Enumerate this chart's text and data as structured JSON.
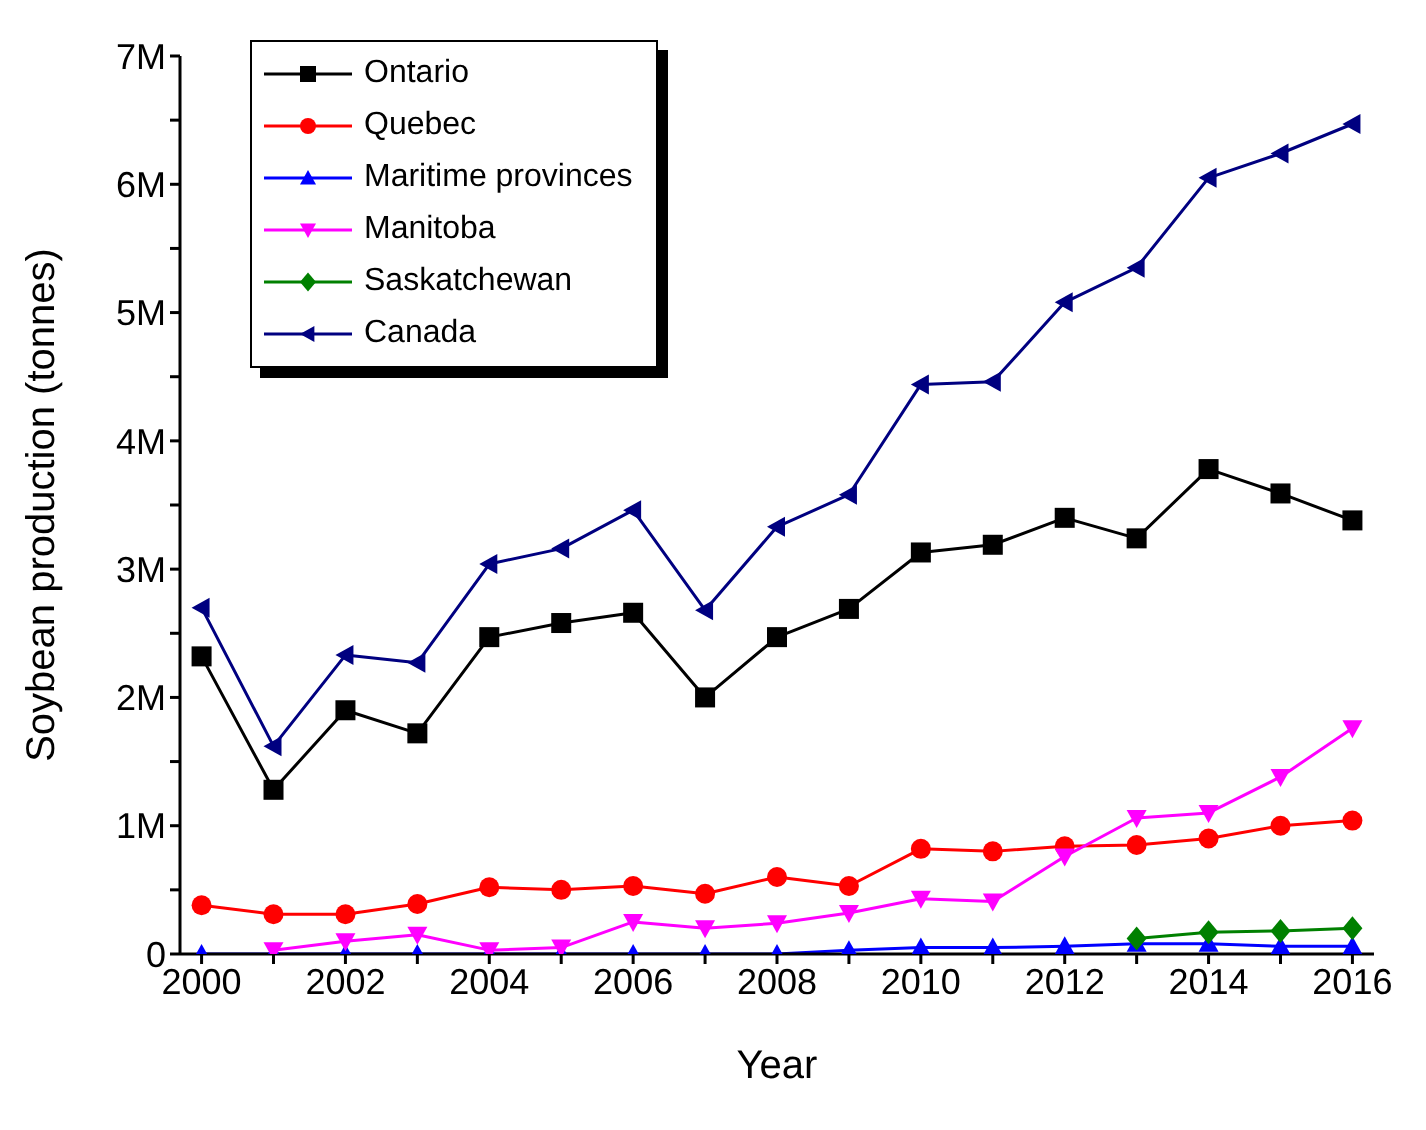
{
  "chart_data": {
    "type": "line",
    "xlabel": "Year",
    "ylabel": "Soybean production (tonnes)",
    "x": [
      2000,
      2001,
      2002,
      2003,
      2004,
      2005,
      2006,
      2007,
      2008,
      2009,
      2010,
      2011,
      2012,
      2013,
      2014,
      2015,
      2016
    ],
    "series": [
      {
        "name": "Ontario",
        "color": "#000000",
        "marker": "square",
        "values": [
          2320000,
          1280000,
          1900000,
          1720000,
          2470000,
          2580000,
          2660000,
          2000000,
          2470000,
          2690000,
          3130000,
          3190000,
          3400000,
          3240000,
          3780000,
          3590000,
          3380000
        ]
      },
      {
        "name": "Quebec",
        "color": "#ff0000",
        "marker": "circle",
        "values": [
          380000,
          310000,
          310000,
          390000,
          520000,
          500000,
          530000,
          470000,
          600000,
          530000,
          820000,
          800000,
          840000,
          850000,
          900000,
          1000000,
          1040000
        ]
      },
      {
        "name": "Maritime provinces",
        "color": "#0000ff",
        "marker": "triangle",
        "values": [
          0,
          0,
          0,
          0,
          0,
          0,
          0,
          0,
          0,
          30000,
          50000,
          50000,
          60000,
          80000,
          80000,
          60000,
          60000
        ]
      },
      {
        "name": "Manitoba",
        "color": "#ff00ff",
        "marker": "triangle-down",
        "values": [
          null,
          30000,
          100000,
          150000,
          30000,
          50000,
          250000,
          200000,
          240000,
          320000,
          430000,
          410000,
          760000,
          1060000,
          1100000,
          1380000,
          1760000
        ]
      },
      {
        "name": "Saskatchewan",
        "color": "#008000",
        "marker": "diamond",
        "values": [
          null,
          null,
          null,
          null,
          null,
          null,
          null,
          null,
          null,
          null,
          null,
          null,
          null,
          120000,
          170000,
          180000,
          200000
        ]
      },
      {
        "name": "Canada",
        "color": "#000080",
        "marker": "triangle-left",
        "values": [
          2700000,
          1620000,
          2330000,
          2270000,
          3040000,
          3160000,
          3460000,
          2680000,
          3330000,
          3580000,
          4440000,
          4460000,
          5080000,
          5350000,
          6050000,
          6240000,
          6470000
        ]
      }
    ],
    "xlim": [
      1999.7,
      2016.3
    ],
    "xticks": [
      2000,
      {
        "value": 2001,
        "label": null
      },
      2002,
      {
        "value": 2003,
        "label": null
      },
      2004,
      {
        "value": 2005,
        "label": null
      },
      2006,
      {
        "value": 2007,
        "label": null
      },
      2008,
      {
        "value": 2009,
        "label": null
      },
      2010,
      {
        "value": 2011,
        "label": null
      },
      2012,
      {
        "value": 2013,
        "label": null
      },
      2014,
      {
        "value": 2015,
        "label": null
      },
      2016
    ],
    "ylim": [
      0,
      7000000
    ],
    "yticks": [
      0,
      {
        "value": 500000,
        "label": null
      },
      {
        "value": 1000000,
        "label": "1M"
      },
      {
        "value": 1500000,
        "label": null
      },
      {
        "value": 2000000,
        "label": "2M"
      },
      {
        "value": 2500000,
        "label": null
      },
      {
        "value": 3000000,
        "label": "3M"
      },
      {
        "value": 3500000,
        "label": null
      },
      {
        "value": 4000000,
        "label": "4M"
      },
      {
        "value": 4500000,
        "label": null
      },
      {
        "value": 5000000,
        "label": "5M"
      },
      {
        "value": 5500000,
        "label": null
      },
      {
        "value": 6000000,
        "label": "6M"
      },
      {
        "value": 6500000,
        "label": null
      },
      {
        "value": 7000000,
        "label": "7M"
      }
    ],
    "grid": false,
    "legend": "top left",
    "line_style": "solid"
  }
}
